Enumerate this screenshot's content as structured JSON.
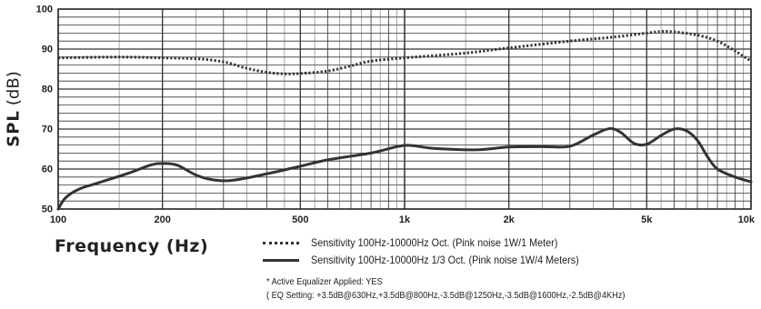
{
  "chart_data": {
    "type": "line",
    "xscale": "log",
    "xlim": [
      100,
      10000
    ],
    "ylim": [
      50,
      100
    ],
    "grid": true,
    "ylabel": "SPL (dB)",
    "ylabel_parts": {
      "main": "SPL",
      "unit": "(dB)"
    },
    "xlabel": "Frequency (Hz)",
    "xticks": [
      {
        "value": 100,
        "label": "100"
      },
      {
        "value": 200,
        "label": "200"
      },
      {
        "value": 500,
        "label": "500"
      },
      {
        "value": 1000,
        "label": "1k"
      },
      {
        "value": 2000,
        "label": "2k"
      },
      {
        "value": 5000,
        "label": "5k"
      },
      {
        "value": 10000,
        "label": "10k"
      }
    ],
    "yticks": [
      {
        "value": 50,
        "label": "50"
      },
      {
        "value": 60,
        "label": "60"
      },
      {
        "value": 70,
        "label": "70"
      },
      {
        "value": 80,
        "label": "80"
      },
      {
        "value": 90,
        "label": "90"
      },
      {
        "value": 100,
        "label": "100"
      }
    ],
    "series": [
      {
        "name": "Sensitivity 100Hz-10000Hz Oct. (Pink noise 1W/1 Meter)",
        "style": "dotted",
        "color": "#333333",
        "x": [
          100,
          150,
          200,
          250,
          300,
          350,
          400,
          450,
          500,
          600,
          700,
          800,
          1000,
          1500,
          2000,
          3000,
          4000,
          5000,
          5500,
          6000,
          7000,
          8000,
          9000,
          10000
        ],
        "y": [
          87.8,
          88.0,
          87.8,
          87.6,
          86.8,
          85.2,
          84.2,
          83.8,
          83.9,
          84.5,
          85.8,
          87.0,
          87.8,
          89.0,
          90.3,
          92.0,
          93.0,
          94.0,
          94.4,
          94.3,
          93.5,
          92.0,
          89.5,
          87.0
        ]
      },
      {
        "name": "Sensitivity 100Hz-10000Hz 1/3 Oct. (Pink noise 1W/4 Meters)",
        "style": "solid",
        "color": "#333333",
        "x": [
          100,
          105,
          115,
          130,
          160,
          185,
          200,
          220,
          250,
          280,
          320,
          400,
          500,
          600,
          800,
          1000,
          1200,
          1600,
          2000,
          2500,
          3000,
          3500,
          3900,
          4200,
          4600,
          5000,
          5500,
          6000,
          6500,
          7000,
          7500,
          8000,
          9000,
          10000
        ],
        "y": [
          50.0,
          52.8,
          55.0,
          56.5,
          59.0,
          61.0,
          61.4,
          61.0,
          58.5,
          57.3,
          57.2,
          58.8,
          60.7,
          62.3,
          64.0,
          65.9,
          65.2,
          64.8,
          65.5,
          65.6,
          65.7,
          68.5,
          70.1,
          69.2,
          66.4,
          66.2,
          68.4,
          70.0,
          69.6,
          67.2,
          63.0,
          60.0,
          58.0,
          56.8
        ]
      }
    ]
  },
  "legend": [
    {
      "text": "Sensitivity 100Hz-10000Hz Oct. (Pink noise 1W/1 Meter)",
      "style": "dotted"
    },
    {
      "text": "Sensitivity 100Hz-10000Hz 1/3 Oct. (Pink noise 1W/4 Meters)",
      "style": "solid"
    }
  ],
  "notes": {
    "line1": "* Active Equalizer Applied: YES",
    "line2": "( EQ Setting: +3.5dB@630Hz,+3.5dB@800Hz,-3.5dB@1250Hz,-3.5dB@1600Hz,-2.5dB@4KHz)"
  }
}
